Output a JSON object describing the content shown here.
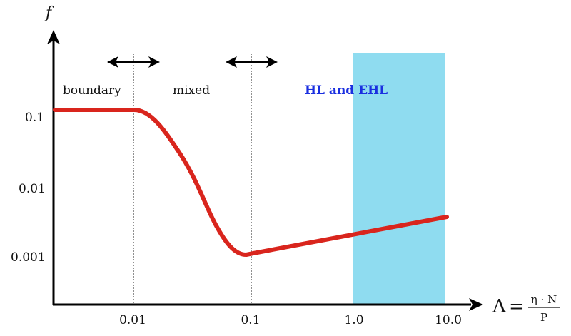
{
  "axes": {
    "y_name": "f",
    "x_formula": {
      "lhs": "Λ",
      "eq": "=",
      "numerator": "η · N",
      "denominator": "P"
    },
    "y_ticks": [
      "0.1",
      "0.01",
      "0.001"
    ],
    "x_ticks": [
      "0.01",
      "0.1",
      "1.0",
      "10.0"
    ]
  },
  "regions": {
    "boundary": "boundary",
    "mixed": "mixed",
    "hl_ehl": "HL and EHL"
  },
  "colors": {
    "curve": "#d9251d",
    "hl_band": "#8fdcf0",
    "hl_label": "#1a2fe0",
    "axis": "#000000"
  },
  "icons": {
    "arrow_left_right": "double-headed-arrow",
    "axis_arrow": "arrowhead"
  }
}
